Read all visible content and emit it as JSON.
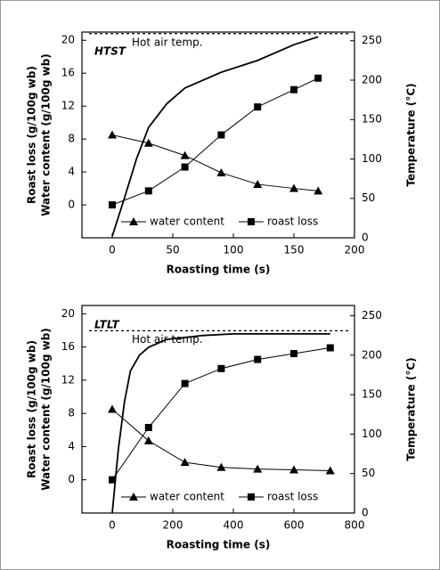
{
  "chart_data": [
    {
      "type": "line",
      "title": "HTST",
      "x_label": "Roasting time (s)",
      "y_label": [
        "Roast loss (g/100g wb)",
        "Water content (g/100g wb)"
      ],
      "y2_label": "Temperature (°C)",
      "xlim": [
        -25,
        200
      ],
      "xticks": [
        0,
        50,
        100,
        150,
        200
      ],
      "ylim": [
        -4,
        21
      ],
      "yticks": [
        0,
        4,
        8,
        12,
        16,
        20
      ],
      "y2lim": [
        0,
        261
      ],
      "y2ticks": [
        0,
        50,
        100,
        150,
        200,
        250
      ],
      "legend": "bottom",
      "annotation": {
        "text": "Hot air temp.",
        "value": 259
      },
      "series": [
        {
          "name": "water content",
          "marker": "triangle",
          "color": "#000000",
          "x": [
            0,
            30,
            60,
            90,
            120,
            150,
            170
          ],
          "values": [
            8.5,
            7.5,
            6.0,
            3.9,
            2.5,
            2.0,
            1.7
          ]
        },
        {
          "name": "roast loss",
          "marker": "square",
          "color": "#000000",
          "x": [
            0,
            30,
            60,
            90,
            120,
            150,
            170
          ],
          "values": [
            0,
            1.7,
            4.6,
            8.5,
            11.9,
            14.0,
            15.4
          ]
        },
        {
          "axis": "y2",
          "color": "#000000",
          "x": [
            0,
            10,
            20,
            30,
            45,
            60,
            90,
            120,
            150,
            170
          ],
          "values": [
            2,
            50,
            100,
            140,
            170,
            190,
            210,
            225,
            245,
            255
          ]
        }
      ]
    },
    {
      "type": "line",
      "title": "LTLT",
      "x_label": "Roasting time (s)",
      "y_label": [
        "Roast loss (g/100g wb)",
        "Water content (g/100g wb)"
      ],
      "y2_label": "Temperature (°C)",
      "xlim": [
        -100,
        800
      ],
      "xticks": [
        0,
        200,
        400,
        600,
        800
      ],
      "ylim": [
        -4,
        21
      ],
      "yticks": [
        0,
        4,
        8,
        12,
        16,
        20
      ],
      "y2lim": [
        0,
        263
      ],
      "y2ticks": [
        0,
        50,
        100,
        150,
        200,
        250
      ],
      "legend": "bottom",
      "annotation": {
        "text": "Hot air temp.",
        "value": 231
      },
      "series": [
        {
          "name": "water content",
          "marker": "triangle",
          "color": "#000000",
          "x": [
            0,
            120,
            240,
            360,
            480,
            600,
            720
          ],
          "values": [
            8.5,
            4.7,
            2.1,
            1.5,
            1.3,
            1.2,
            1.1
          ]
        },
        {
          "name": "roast loss",
          "marker": "square",
          "color": "#000000",
          "x": [
            0,
            120,
            240,
            360,
            480,
            600,
            720
          ],
          "values": [
            0,
            6.3,
            11.6,
            13.4,
            14.5,
            15.2,
            15.9
          ]
        },
        {
          "axis": "y2",
          "color": "#000000",
          "x": [
            0,
            20,
            40,
            60,
            90,
            120,
            180,
            300,
            400,
            720
          ],
          "values": [
            0,
            80,
            140,
            180,
            200,
            210,
            220,
            225,
            227,
            227
          ]
        }
      ]
    }
  ]
}
